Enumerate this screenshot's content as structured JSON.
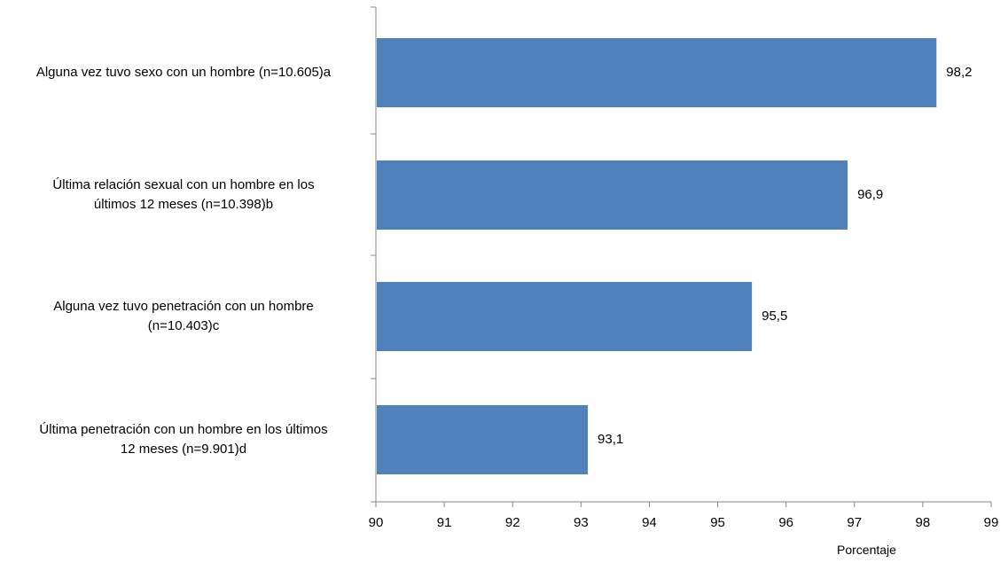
{
  "chart_data": {
    "type": "bar",
    "orientation": "horizontal",
    "categories": [
      [
        "Alguna vez tuvo sexo con un hombre (n=10.605)a"
      ],
      [
        "Última relación sexual con un hombre en los",
        "últimos 12 meses (n=10.398)b"
      ],
      [
        "Alguna vez tuvo penetración con un hombre",
        "(n=10.403)c"
      ],
      [
        "Última penetración con un hombre en los últimos",
        "12 meses (n=9.901)d"
      ]
    ],
    "values": [
      98.2,
      96.9,
      95.5,
      93.1
    ],
    "value_labels": [
      "98,2",
      "96,9",
      "95,5",
      "93,1"
    ],
    "xlabel": "Porcentaje",
    "xlim": [
      90,
      99
    ],
    "xticks": [
      "90",
      "91",
      "92",
      "93",
      "94",
      "95",
      "96",
      "97",
      "98",
      "99"
    ],
    "grid": false,
    "bar_color": "#4f81bd"
  }
}
